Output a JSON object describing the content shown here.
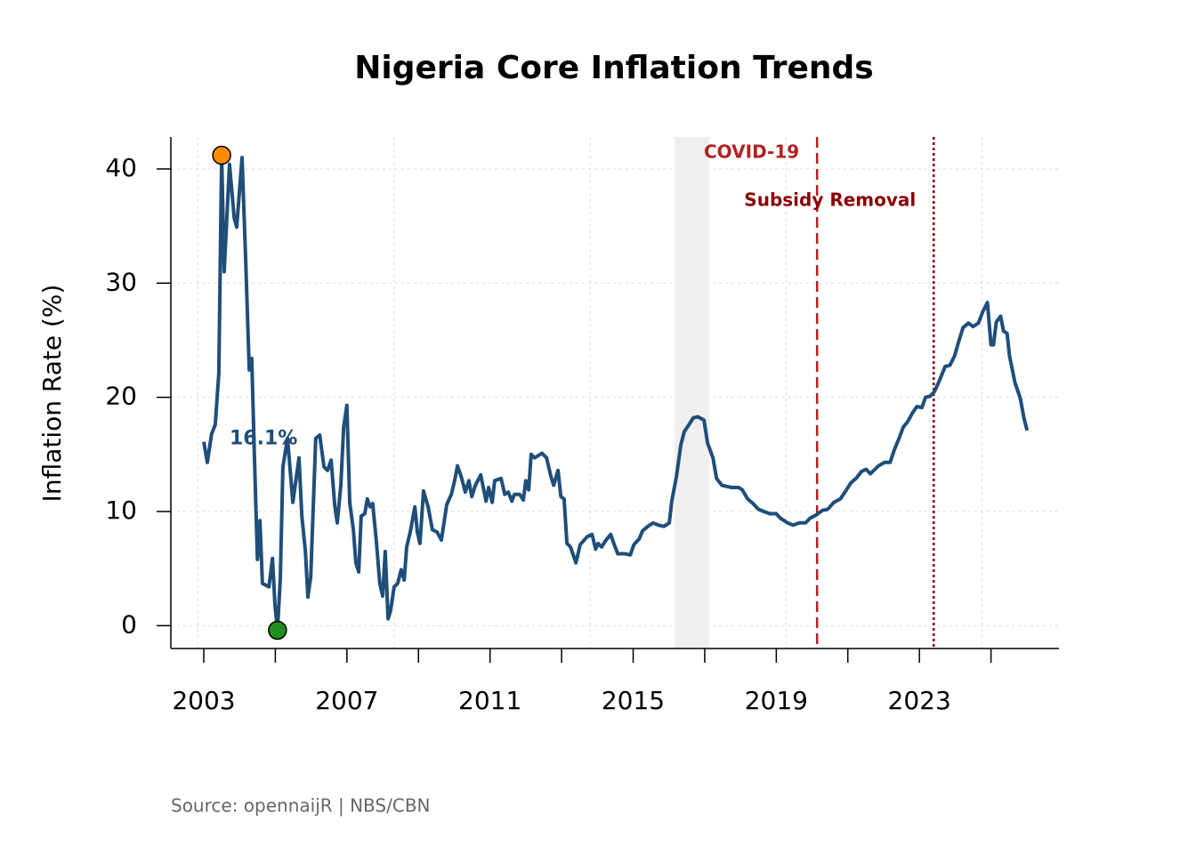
{
  "chart_data": {
    "type": "line",
    "title": "Nigeria Core Inflation Trends",
    "y_label": "Inflation Rate (%)",
    "source": "Source: opennaijR | NBS/CBN",
    "xlim": [
      2002.08,
      2026.9
    ],
    "ylim": [
      -2,
      42.8
    ],
    "xticks": [
      2003,
      2007,
      2011,
      2015,
      2019,
      2023
    ],
    "xminor_ticks": [
      2005,
      2009,
      2013,
      2017,
      2021,
      2025
    ],
    "xgrid": [
      2002.83,
      2008.32,
      2013.8,
      2019.27,
      2024.75
    ],
    "yticks": [
      0,
      10,
      20,
      30,
      40
    ],
    "grid": true,
    "x": [
      2003.0,
      2003.1,
      2003.22,
      2003.32,
      2003.42,
      2003.5,
      2003.57,
      2003.72,
      2003.85,
      2003.92,
      2004.07,
      2004.17,
      2004.27,
      2004.34,
      2004.42,
      2004.5,
      2004.57,
      2004.64,
      2004.82,
      2004.92,
      2004.99,
      2005.06,
      2005.14,
      2005.21,
      2005.34,
      2005.49,
      2005.66,
      2005.74,
      2005.84,
      2005.91,
      2005.99,
      2006.13,
      2006.24,
      2006.36,
      2006.46,
      2006.56,
      2006.66,
      2006.73,
      2006.83,
      2006.91,
      2007.0,
      2007.08,
      2007.18,
      2007.25,
      2007.33,
      2007.4,
      2007.5,
      2007.57,
      2007.65,
      2007.72,
      2007.82,
      2007.92,
      2008.0,
      2008.07,
      2008.15,
      2008.22,
      2008.32,
      2008.42,
      2008.52,
      2008.6,
      2008.67,
      2008.77,
      2008.9,
      2008.97,
      2009.04,
      2009.14,
      2009.27,
      2009.39,
      2009.52,
      2009.64,
      2009.79,
      2009.92,
      2010.01,
      2010.09,
      2010.19,
      2010.31,
      2010.41,
      2010.49,
      2010.59,
      2010.74,
      2010.89,
      2010.96,
      2011.06,
      2011.13,
      2011.31,
      2011.41,
      2011.51,
      2011.61,
      2011.68,
      2011.83,
      2011.93,
      2012.0,
      2012.08,
      2012.15,
      2012.25,
      2012.35,
      2012.45,
      2012.58,
      2012.7,
      2012.78,
      2012.9,
      2012.98,
      2013.07,
      2013.15,
      2013.25,
      2013.4,
      2013.52,
      2013.72,
      2013.85,
      2013.95,
      2014.02,
      2014.12,
      2014.22,
      2014.37,
      2014.47,
      2014.57,
      2014.77,
      2014.92,
      2015.02,
      2015.17,
      2015.26,
      2015.41,
      2015.56,
      2015.71,
      2015.86,
      2016.01,
      2016.08,
      2016.21,
      2016.33,
      2016.43,
      2016.56,
      2016.68,
      2016.81,
      2016.98,
      2017.08,
      2017.23,
      2017.33,
      2017.48,
      2017.6,
      2017.75,
      2017.95,
      2018.05,
      2018.2,
      2018.35,
      2018.5,
      2018.65,
      2018.82,
      2019.0,
      2019.12,
      2019.32,
      2019.47,
      2019.64,
      2019.82,
      2019.94,
      2020.12,
      2020.29,
      2020.44,
      2020.61,
      2020.79,
      2020.94,
      2021.08,
      2021.23,
      2021.38,
      2021.51,
      2021.63,
      2021.76,
      2021.86,
      2022.03,
      2022.18,
      2022.3,
      2022.43,
      2022.55,
      2022.68,
      2022.8,
      2022.93,
      2023.07,
      2023.17,
      2023.3,
      2023.42,
      2023.55,
      2023.72,
      2023.85,
      2023.98,
      2024.1,
      2024.22,
      2024.37,
      2024.5,
      2024.65,
      2024.77,
      2024.9,
      2025.0,
      2025.07,
      2025.15,
      2025.27,
      2025.35,
      2025.45,
      2025.52,
      2025.67,
      2025.82,
      2025.92,
      2026.01
    ],
    "series": [
      {
        "color": "#1f4e79",
        "values": [
          16.1,
          14.3,
          16.8,
          17.6,
          22.1,
          41.2,
          31.0,
          40.4,
          35.7,
          34.9,
          41.0,
          32.2,
          22.4,
          23.4,
          14.3,
          5.8,
          9.2,
          3.7,
          3.4,
          5.9,
          1.8,
          -0.4,
          4.1,
          13.9,
          16.4,
          10.8,
          14.7,
          9.6,
          6.5,
          2.5,
          4.3,
          16.4,
          16.7,
          13.9,
          13.6,
          14.5,
          10.5,
          9.0,
          12.3,
          17.4,
          19.3,
          10.8,
          8.4,
          5.5,
          4.7,
          9.6,
          9.8,
          11.1,
          10.4,
          10.7,
          7.5,
          3.7,
          2.6,
          6.5,
          0.6,
          1.3,
          3.4,
          3.7,
          4.9,
          4.0,
          6.9,
          8.2,
          10.4,
          8.2,
          7.2,
          11.8,
          10.4,
          8.4,
          8.2,
          7.5,
          10.6,
          11.5,
          12.7,
          14.0,
          13.1,
          11.7,
          12.7,
          11.3,
          12.3,
          13.2,
          10.9,
          12.1,
          10.8,
          12.7,
          12.9,
          11.5,
          11.7,
          10.9,
          11.5,
          11.5,
          11.0,
          12.7,
          11.9,
          15.0,
          14.7,
          14.9,
          15.1,
          14.7,
          13.1,
          12.3,
          13.6,
          11.3,
          11.1,
          7.2,
          6.9,
          5.5,
          7.1,
          7.8,
          8.0,
          6.7,
          7.2,
          6.9,
          7.4,
          8.0,
          7.1,
          6.3,
          6.3,
          6.2,
          7.1,
          7.6,
          8.3,
          8.7,
          9.0,
          8.8,
          8.7,
          9.0,
          10.9,
          13.1,
          15.8,
          17.0,
          17.6,
          18.2,
          18.3,
          18.0,
          16.0,
          14.7,
          12.9,
          12.3,
          12.2,
          12.1,
          12.1,
          11.9,
          11.1,
          10.7,
          10.2,
          10.0,
          9.8,
          9.8,
          9.4,
          9.0,
          8.8,
          9.0,
          9.0,
          9.4,
          9.7,
          10.1,
          10.2,
          10.8,
          11.1,
          11.8,
          12.5,
          12.9,
          13.5,
          13.7,
          13.3,
          13.7,
          14.0,
          14.3,
          14.3,
          15.4,
          16.4,
          17.4,
          17.9,
          18.6,
          19.2,
          19.1,
          20.0,
          20.1,
          20.5,
          21.4,
          22.7,
          22.8,
          23.6,
          24.9,
          26.1,
          26.5,
          26.2,
          26.5,
          27.5,
          28.3,
          24.6,
          24.6,
          26.6,
          27.1,
          25.8,
          25.6,
          23.6,
          21.3,
          19.9,
          18.2,
          17.1
        ]
      }
    ],
    "start_label": "16.1%",
    "highlights": [
      {
        "x": 2003.5,
        "y": 41.2,
        "color": "#ff8c00"
      },
      {
        "x": 2005.06,
        "y": -0.4,
        "color": "#228b22"
      }
    ],
    "shaded_region": [
      2016.16,
      2017.13
    ],
    "events": [
      {
        "label": "COVID-19",
        "x": 2020.14,
        "color": "#b22222",
        "style": "dashed"
      },
      {
        "label": "Subsidy Removal",
        "x": 2023.4,
        "color": "#8b0000",
        "style": "dotted"
      }
    ]
  }
}
